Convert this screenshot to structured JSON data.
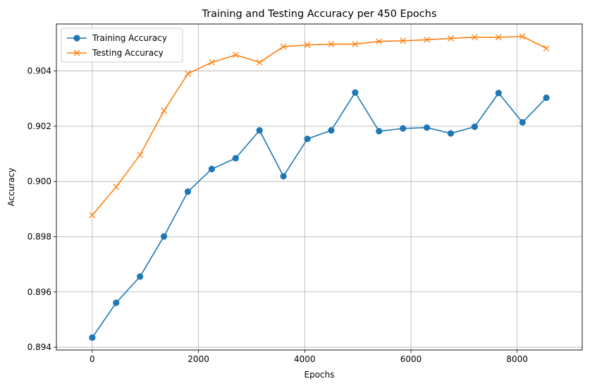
{
  "chart_data": {
    "type": "line",
    "title": "Training and Testing Accuracy per 450 Epochs",
    "xlabel": "Epochs",
    "ylabel": "Accuracy",
    "xlim": [
      -675,
      9225
    ],
    "ylim": [
      0.8939,
      0.9057
    ],
    "xticks": [
      0,
      2000,
      4000,
      6000,
      8000
    ],
    "xtick_labels": [
      "0",
      "2000",
      "4000",
      "6000",
      "8000"
    ],
    "yticks": [
      0.894,
      0.896,
      0.898,
      0.9,
      0.902,
      0.904
    ],
    "ytick_labels": [
      "0.894",
      "0.896",
      "0.898",
      "0.900",
      "0.902",
      "0.904"
    ],
    "grid": true,
    "legend_position": "top-left",
    "x": [
      0,
      450,
      900,
      1350,
      1800,
      2250,
      2700,
      3150,
      3600,
      4050,
      4500,
      4950,
      5400,
      5850,
      6300,
      6750,
      7200,
      7650,
      8100,
      8550
    ],
    "series": [
      {
        "name": "Training Accuracy",
        "color": "#1f77b4",
        "marker": "circle",
        "values": [
          0.89435,
          0.89561,
          0.89656,
          0.89801,
          0.89963,
          0.90045,
          0.90084,
          0.90185,
          0.90019,
          0.90154,
          0.90185,
          0.90322,
          0.90182,
          0.90192,
          0.90195,
          0.90174,
          0.90198,
          0.9032,
          0.90214,
          0.90303
        ]
      },
      {
        "name": "Testing Accuracy",
        "color": "#ff7f0e",
        "marker": "x",
        "values": [
          0.89878,
          0.8998,
          0.90096,
          0.90256,
          0.9039,
          0.90431,
          0.90458,
          0.90431,
          0.90488,
          0.90494,
          0.90497,
          0.90497,
          0.90507,
          0.90509,
          0.90513,
          0.90518,
          0.90522,
          0.90522,
          0.90525,
          0.90482
        ]
      }
    ]
  }
}
